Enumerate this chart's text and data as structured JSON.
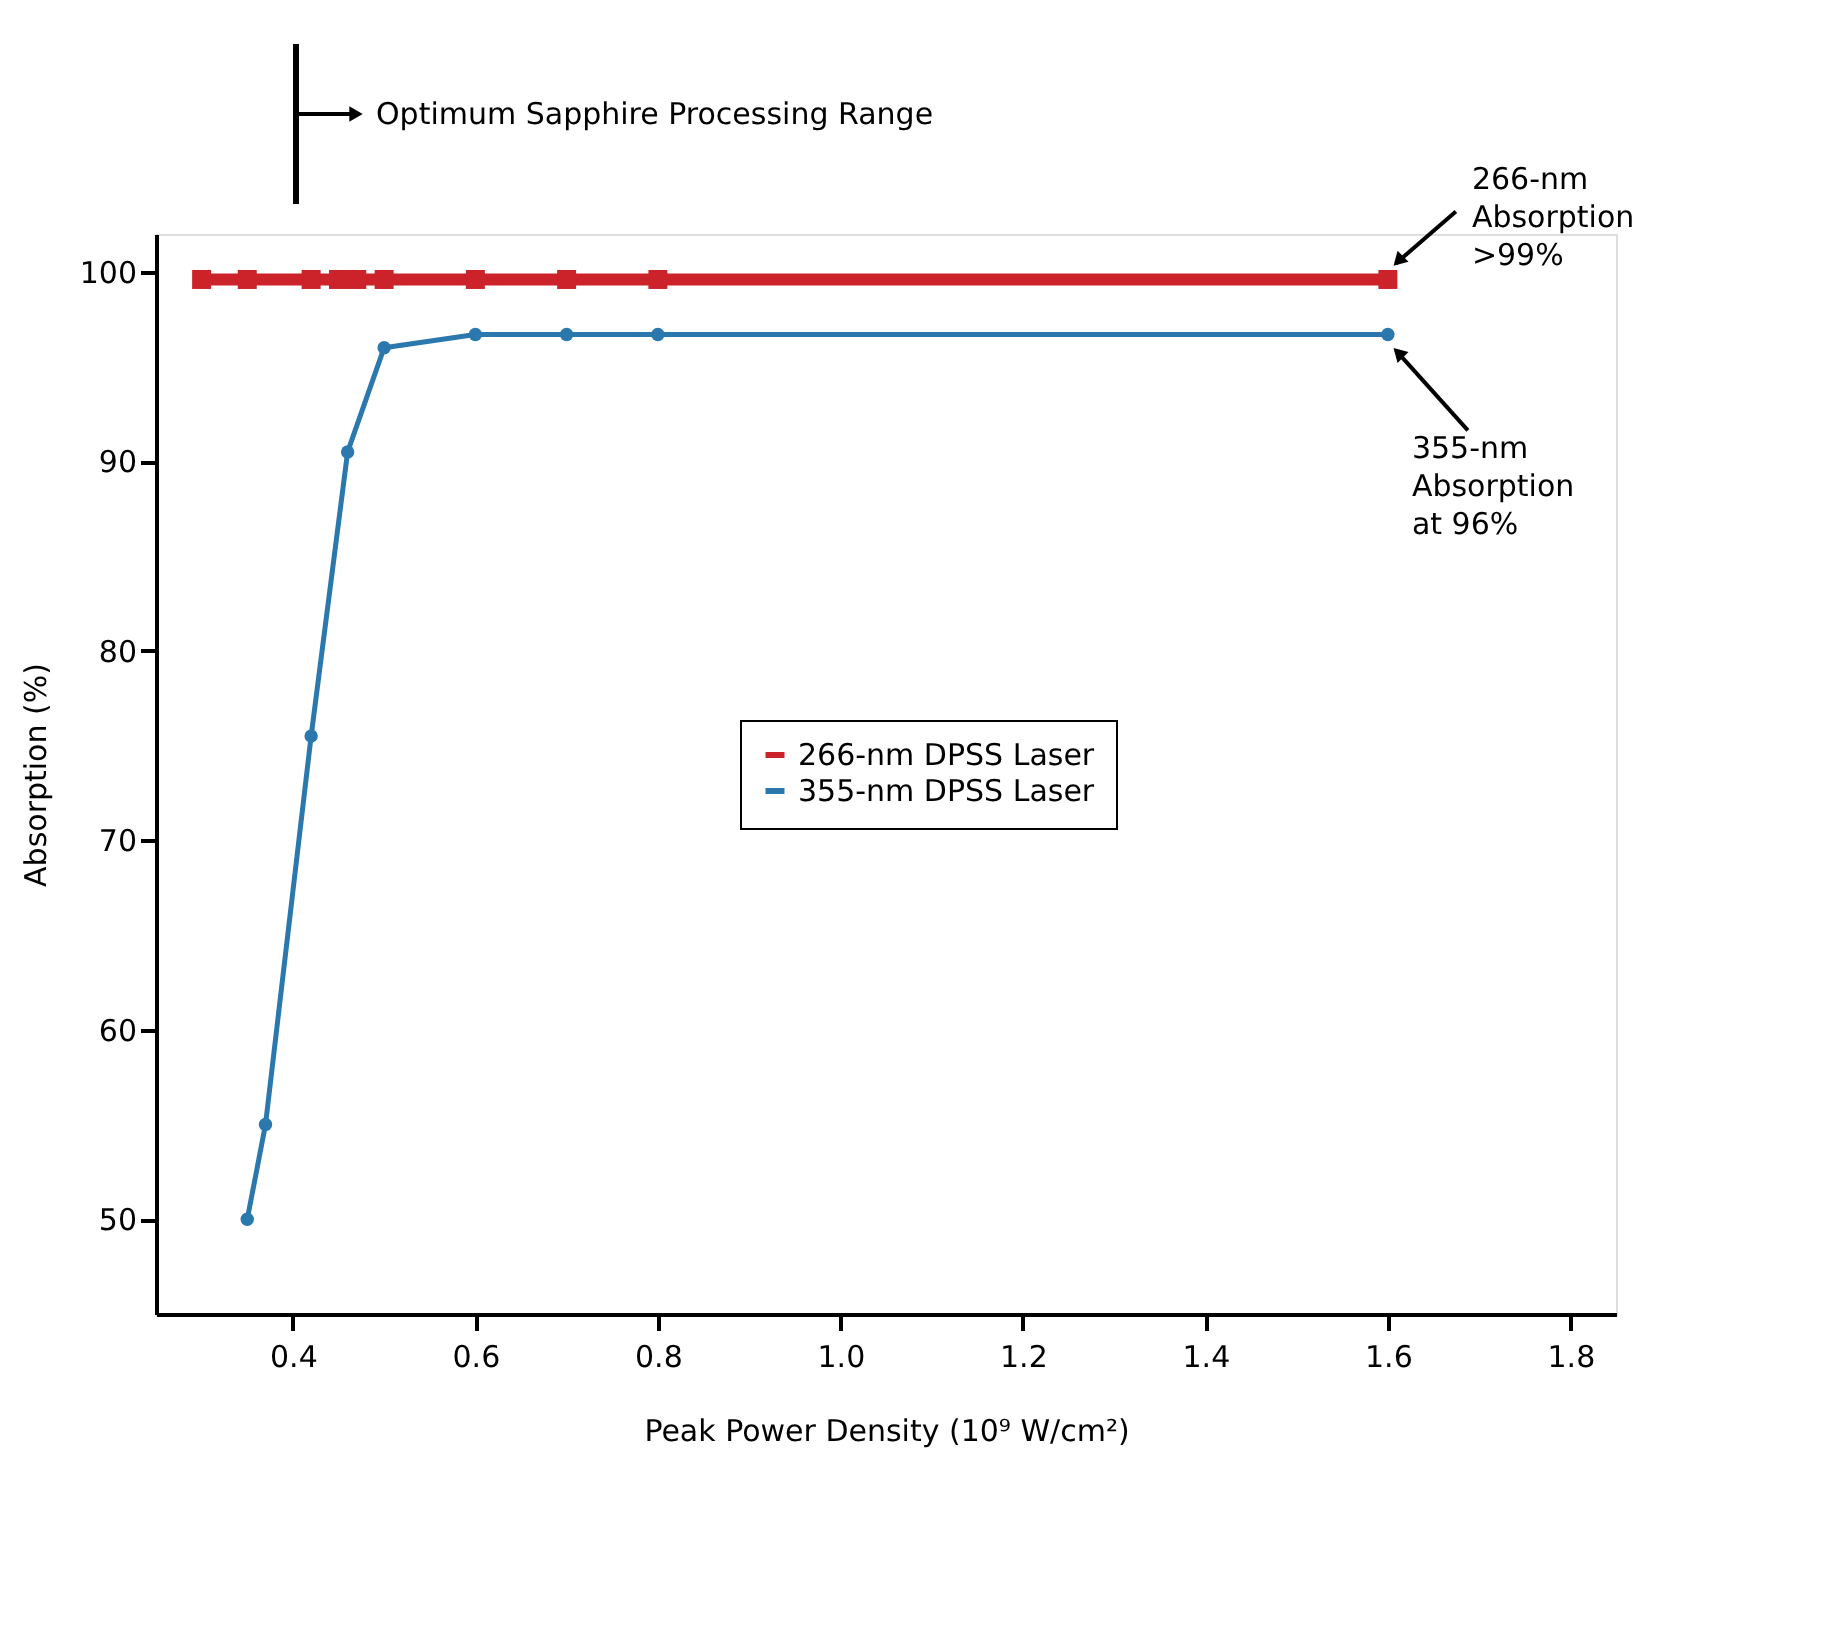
{
  "chart_data": {
    "type": "line",
    "xlabel": "Peak Power Density (10⁹ W/cm²)",
    "ylabel": "Absorption (%)",
    "xlim": [
      0.25,
      1.85
    ],
    "xticks": [
      0.4,
      0.6,
      0.8,
      {
        "value": 1,
        "label": "1.0"
      },
      1.2,
      1.4,
      1.6,
      1.8
    ],
    "ylim": [
      45,
      102
    ],
    "yticks": [
      50,
      60,
      70,
      80,
      90,
      100
    ],
    "grid": false,
    "legend": "center right",
    "series": [
      {
        "name": "266-nm DPSS Laser",
        "color": "#cc2229",
        "marker": "square",
        "x": [
          0.3,
          0.35,
          0.42,
          0.45,
          0.47,
          0.5,
          0.6,
          0.7,
          0.8,
          1.6
        ],
        "values": [
          99.6,
          99.6,
          99.6,
          99.6,
          99.6,
          99.6,
          99.6,
          99.6,
          99.6,
          99.6
        ]
      },
      {
        "name": "355-nm DPSS Laser",
        "color": "#2a78ae",
        "marker": "circle",
        "x": [
          0.35,
          0.37,
          0.42,
          0.46,
          0.5,
          0.6,
          0.7,
          0.8,
          1.6
        ],
        "values": [
          50,
          55,
          75.5,
          90.5,
          96,
          96.7,
          96.7,
          96.7,
          96.7
        ]
      }
    ],
    "annotations": [
      "Optimum Sapphire Processing Range",
      {
        "text": "266-nm\nAbsorption\n>99%",
        "x": 1.6,
        "y": 99.6
      },
      {
        "text": "355-nm\nAbsorption\nat 96%",
        "x": 1.6,
        "y": 96.7
      }
    ]
  }
}
